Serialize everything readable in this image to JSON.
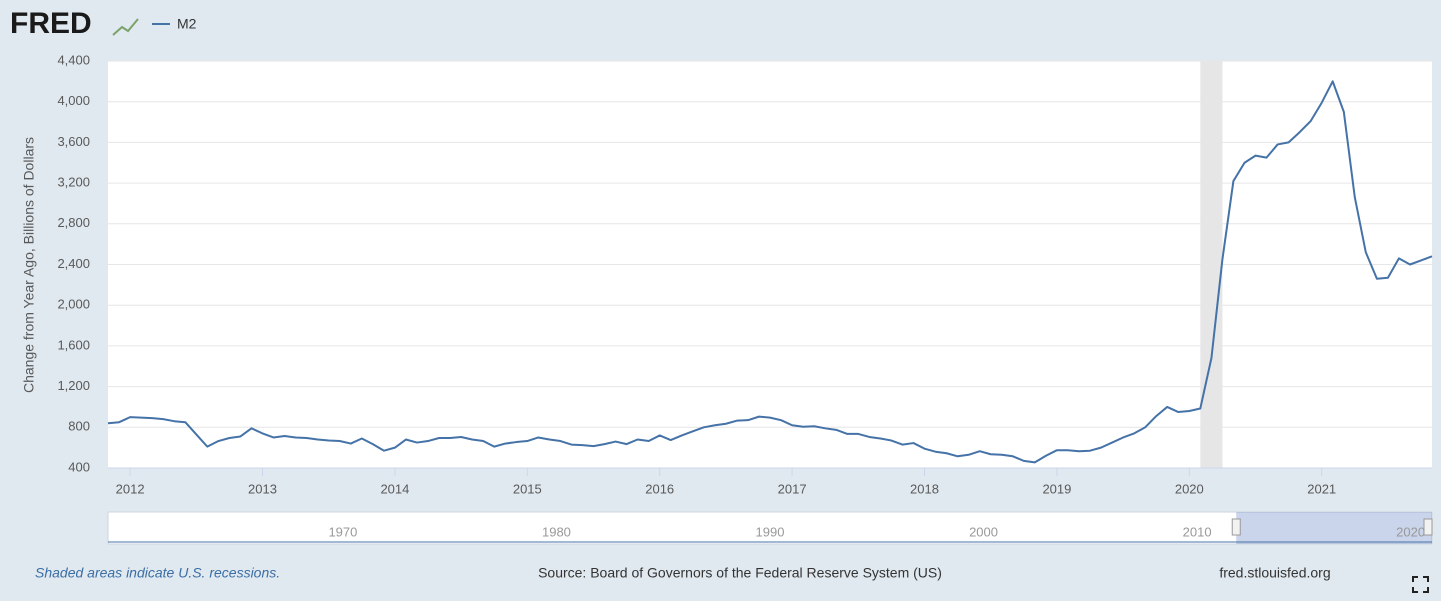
{
  "chart_data": {
    "type": "line",
    "logo": "FRED",
    "ylabel": "Change from Year Ago, Billions of Dollars",
    "note": "Shaded areas indicate U.S. recessions.",
    "source": "Source: Board of Governors of the Federal Reserve System (US)",
    "site": "fred.stlouisfed.org",
    "x": [
      2011.833,
      2011.917,
      2012,
      2012.083,
      2012.167,
      2012.25,
      2012.333,
      2012.417,
      2012.5,
      2012.583,
      2012.667,
      2012.75,
      2012.833,
      2012.917,
      2013,
      2013.083,
      2013.167,
      2013.25,
      2013.333,
      2013.417,
      2013.5,
      2013.583,
      2013.667,
      2013.75,
      2013.833,
      2013.917,
      2014,
      2014.083,
      2014.167,
      2014.25,
      2014.333,
      2014.417,
      2014.5,
      2014.583,
      2014.667,
      2014.75,
      2014.833,
      2014.917,
      2015,
      2015.083,
      2015.167,
      2015.25,
      2015.333,
      2015.417,
      2015.5,
      2015.583,
      2015.667,
      2015.75,
      2015.833,
      2015.917,
      2016,
      2016.083,
      2016.167,
      2016.25,
      2016.333,
      2016.417,
      2016.5,
      2016.583,
      2016.667,
      2016.75,
      2016.833,
      2016.917,
      2017,
      2017.083,
      2017.167,
      2017.25,
      2017.333,
      2017.417,
      2017.5,
      2017.583,
      2017.667,
      2017.75,
      2017.833,
      2017.917,
      2018,
      2018.083,
      2018.167,
      2018.25,
      2018.333,
      2018.417,
      2018.5,
      2018.583,
      2018.667,
      2018.75,
      2018.833,
      2018.917,
      2019,
      2019.083,
      2019.167,
      2019.25,
      2019.333,
      2019.417,
      2019.5,
      2019.583,
      2019.667,
      2019.75,
      2019.833,
      2019.917,
      2020,
      2020.083,
      2020.167,
      2020.25,
      2020.333,
      2020.417,
      2020.5,
      2020.583,
      2020.667,
      2020.75,
      2020.833,
      2020.917,
      2021,
      2021.083,
      2021.167,
      2021.25,
      2021.333,
      2021.417,
      2021.5,
      2021.583,
      2021.667,
      2021.75,
      2021.833
    ],
    "series": [
      {
        "name": "M2",
        "color": "#4572a7",
        "values": [
          840,
          850,
          900,
          895,
          890,
          880,
          860,
          850,
          730,
          610,
          665,
          695,
          710,
          790,
          740,
          700,
          715,
          700,
          695,
          680,
          670,
          665,
          640,
          690,
          635,
          570,
          600,
          680,
          650,
          665,
          695,
          695,
          705,
          680,
          665,
          610,
          640,
          655,
          665,
          700,
          680,
          665,
          630,
          625,
          615,
          635,
          660,
          635,
          680,
          665,
          720,
          675,
          720,
          760,
          800,
          820,
          835,
          865,
          870,
          905,
          895,
          870,
          820,
          805,
          810,
          790,
          775,
          735,
          735,
          705,
          690,
          670,
          630,
          645,
          590,
          560,
          545,
          515,
          530,
          565,
          535,
          530,
          515,
          470,
          455,
          520,
          575,
          575,
          565,
          570,
          600,
          650,
          700,
          740,
          800,
          910,
          1000,
          950,
          960,
          985,
          1480,
          2450,
          3220,
          3400,
          3470,
          3450,
          3580,
          3600,
          3700,
          3810,
          3990,
          4200,
          3900,
          3060,
          2520,
          2260,
          2270,
          2460,
          2400,
          2440,
          2480
        ]
      }
    ],
    "xlim": [
      2011.833,
      2021.833
    ],
    "xticks": [
      2012,
      2013,
      2014,
      2015,
      2016,
      2017,
      2018,
      2019,
      2020,
      2021
    ],
    "ylim": [
      400,
      4400
    ],
    "yticks": [
      400,
      800,
      {
        "value": 1200,
        "label": "1,200"
      },
      {
        "value": 1600,
        "label": "1,600"
      },
      {
        "value": 2000,
        "label": "2,000"
      },
      {
        "value": 2400,
        "label": "2,400"
      },
      {
        "value": 2800,
        "label": "2,800"
      },
      {
        "value": 3200,
        "label": "3,200"
      },
      {
        "value": 3600,
        "label": "3,600"
      },
      {
        "value": 4000,
        "label": "4,000"
      },
      {
        "value": 4400,
        "label": "4,400"
      }
    ],
    "grid": true,
    "recessions": [
      [
        2020.083,
        2020.25
      ]
    ],
    "recession_color": "#e6e6e6",
    "navigator": {
      "xlim": [
        1959,
        2021
      ],
      "xticks": [
        1970,
        1980,
        1990,
        2000,
        2010,
        2020
      ]
    }
  }
}
